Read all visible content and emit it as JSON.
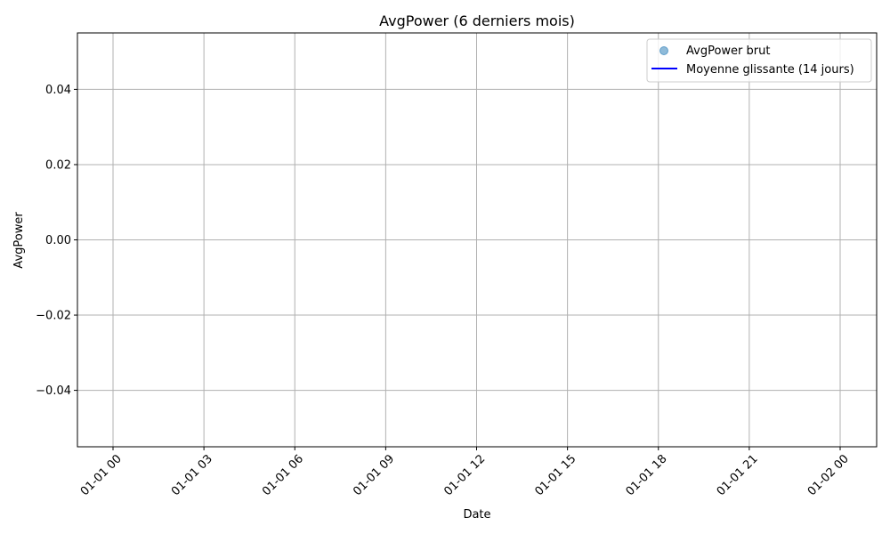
{
  "chart_data": {
    "type": "scatter",
    "title": "AvgPower (6 derniers mois)",
    "xlabel": "Date",
    "ylabel": "AvgPower",
    "x_ticks": [
      "01-01 00",
      "01-01 03",
      "01-01 06",
      "01-01 09",
      "01-01 12",
      "01-01 15",
      "01-01 18",
      "01-01 21",
      "01-02 00"
    ],
    "y_ticks": [
      "−0.04",
      "−0.02",
      "0.00",
      "0.02",
      "0.04"
    ],
    "y_tick_values": [
      -0.04,
      -0.02,
      0.0,
      0.02,
      0.04
    ],
    "ylim": [
      -0.055,
      0.055
    ],
    "grid": true,
    "legend_position": "top-right",
    "series": [
      {
        "name": "AvgPower brut",
        "kind": "scatter",
        "color": "#1f77b4",
        "values": []
      },
      {
        "name": "Moyenne glissante (14 jours)",
        "kind": "line",
        "color": "#0000ff",
        "values": []
      }
    ]
  }
}
